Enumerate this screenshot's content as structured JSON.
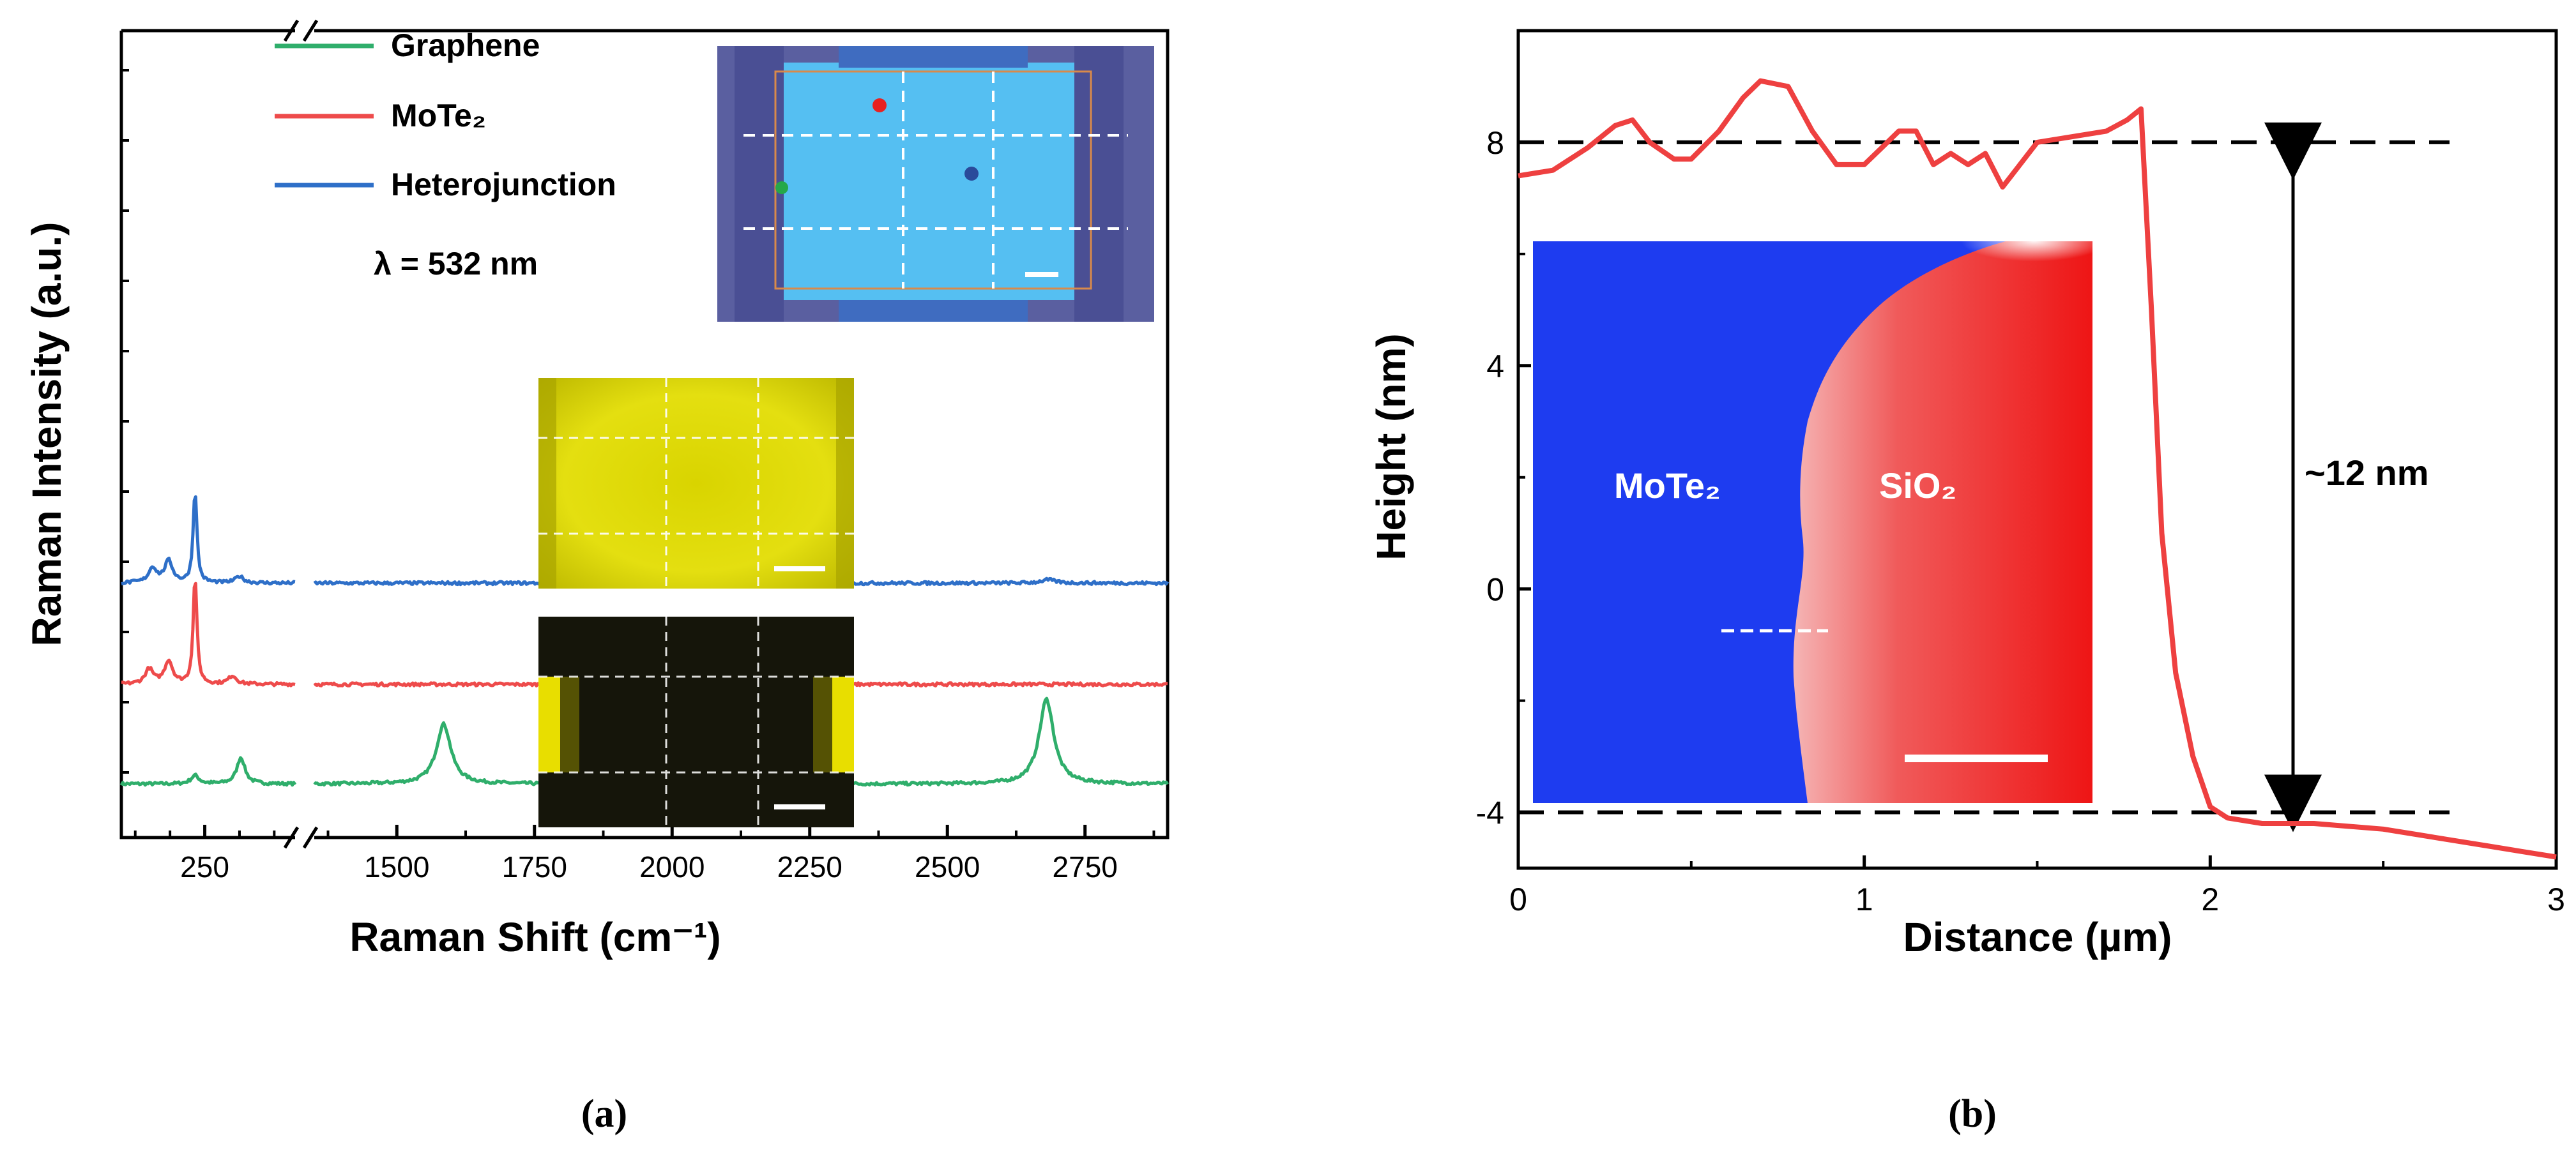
{
  "colors": {
    "graphene": "#2FAE6B",
    "mote2": "#EE4B4B",
    "heterojunction": "#2E6FC8",
    "profile": "#EE4040",
    "axis": "#000000"
  },
  "chart_data": [
    {
      "type": "line",
      "panel_label": "(a)",
      "xlabel": "Raman Shift (cm⁻¹)",
      "ylabel": "Raman Intensity (a.u.)",
      "x_break": true,
      "x_segments": [
        {
          "range": [
            130,
            380
          ],
          "ticks": [
            250
          ]
        },
        {
          "range": [
            1350,
            2900
          ],
          "ticks": [
            1500,
            1750,
            2000,
            2250,
            2500,
            2750
          ]
        }
      ],
      "legend": [
        "Graphene",
        "MoTe₂",
        "Heterojunction"
      ],
      "annotation": "λ = 532 nm",
      "series": [
        {
          "name": "Graphene",
          "offset": 0,
          "peaks": [
            [
              236,
              0.5
            ],
            [
              302,
              1.6
            ],
            [
              1585,
              3.6
            ],
            [
              2680,
              5.1
            ]
          ]
        },
        {
          "name": "MoTe₂",
          "offset": 6.0,
          "peaks": [
            [
              170,
              0.9
            ],
            [
              198,
              1.4
            ],
            [
              236,
              6.5
            ],
            [
              290,
              0.5
            ]
          ]
        },
        {
          "name": "Heterojunction",
          "offset": 12.1,
          "peaks": [
            [
              175,
              0.9
            ],
            [
              198,
              1.3
            ],
            [
              236,
              5.6
            ],
            [
              300,
              0.4
            ],
            [
              2683,
              0.2
            ]
          ]
        }
      ],
      "insets": [
        "optical micrograph of device",
        "Raman map (MoTe₂)",
        "Raman map (graphene)"
      ]
    },
    {
      "type": "line",
      "panel_label": "(b)",
      "xlabel": "Distance (µm)",
      "ylabel": "Height (nm)",
      "xlim": [
        0,
        3
      ],
      "ylim": [
        -5,
        10
      ],
      "xticks": [
        0,
        1,
        2,
        3
      ],
      "yticks": [
        -4,
        0,
        4,
        8
      ],
      "annotation": "~12 nm",
      "reference_lines": [
        8,
        -4
      ],
      "inset_labels": [
        "MoTe₂",
        "SiO₂"
      ],
      "series": [
        {
          "name": "Height profile",
          "x": [
            0,
            0.1,
            0.2,
            0.28,
            0.33,
            0.38,
            0.45,
            0.5,
            0.58,
            0.65,
            0.7,
            0.78,
            0.85,
            0.92,
            1.0,
            1.05,
            1.1,
            1.15,
            1.2,
            1.25,
            1.3,
            1.35,
            1.4,
            1.45,
            1.5,
            1.6,
            1.7,
            1.76,
            1.8,
            1.83,
            1.86,
            1.9,
            1.95,
            2.0,
            2.05,
            2.15,
            2.3,
            2.5,
            2.6,
            2.7,
            2.8,
            2.9,
            3.0
          ],
          "y": [
            7.4,
            7.5,
            7.9,
            8.3,
            8.4,
            8.0,
            7.7,
            7.7,
            8.2,
            8.8,
            9.1,
            9.0,
            8.2,
            7.6,
            7.6,
            7.9,
            8.2,
            8.2,
            7.6,
            7.8,
            7.6,
            7.8,
            7.2,
            7.6,
            8.0,
            8.1,
            8.2,
            8.4,
            8.6,
            5.0,
            1.0,
            -1.5,
            -3.0,
            -3.9,
            -4.1,
            -4.2,
            -4.2,
            -4.3,
            -4.4,
            -4.5,
            -4.6,
            -4.7,
            -4.8
          ]
        }
      ]
    }
  ]
}
